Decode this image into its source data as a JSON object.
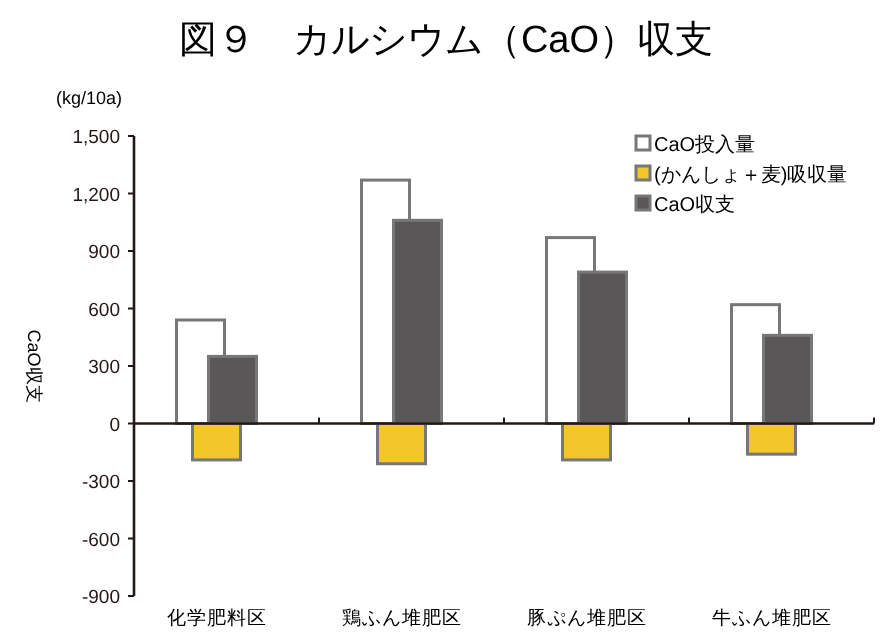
{
  "chart_data": {
    "type": "bar",
    "title": "図９　カルシウム（CaO）収支",
    "ylabel": "CaO収支",
    "annotations": [
      "(kg/10a)"
    ],
    "categories": [
      "化学肥料区",
      "鶏ふん堆肥区",
      "豚ぷん堆肥区",
      "牛ふん堆肥区"
    ],
    "series": [
      {
        "name": "CaO投入量",
        "color": "#ffffff",
        "values": [
          540,
          1270,
          970,
          620
        ]
      },
      {
        "name": "(かんしょ＋麦)吸収量",
        "color": "#f3c72a",
        "values": [
          -190,
          -210,
          -190,
          -160
        ]
      },
      {
        "name": "CaO収支",
        "color": "#595757",
        "values": [
          350,
          1060,
          790,
          460
        ]
      }
    ],
    "ylim": [
      -900,
      1500
    ],
    "yticks": [
      {
        "value": -900,
        "label": "-900"
      },
      {
        "value": -600,
        "label": "-600"
      },
      {
        "value": -300,
        "label": "-300"
      },
      0,
      300,
      600,
      900,
      {
        "value": 1200,
        "label": "1,200"
      },
      {
        "value": 1500,
        "label": "1,500"
      }
    ],
    "legend": "top right"
  }
}
